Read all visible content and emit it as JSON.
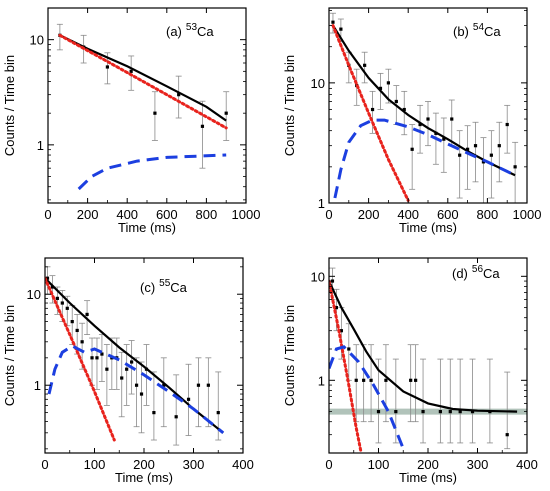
{
  "chart_data": [
    {
      "type": "scatter",
      "panel_label": "(a)",
      "mass_number": "53",
      "element": "Ca",
      "xlabel": "Time (ms)",
      "ylabel": "Counts / Time bin",
      "x_ticks": [
        "0",
        "200",
        "400",
        "600",
        "800",
        "1000"
      ],
      "y_ticks": [
        "1",
        "10"
      ],
      "xlim": [
        0,
        1000
      ],
      "ylim": [
        0.28,
        20
      ],
      "yscale": "log",
      "points": [
        {
          "x": 60,
          "y": 11,
          "lo": 8,
          "hi": 14
        },
        {
          "x": 180,
          "y": 8.5,
          "lo": 6,
          "hi": 11
        },
        {
          "x": 300,
          "y": 5.5,
          "lo": 3.8,
          "hi": 7.5
        },
        {
          "x": 420,
          "y": 5,
          "lo": 3.3,
          "hi": 7
        },
        {
          "x": 540,
          "y": 2,
          "lo": 1.1,
          "hi": 3.2
        },
        {
          "x": 660,
          "y": 3,
          "lo": 1.8,
          "hi": 4.5
        },
        {
          "x": 780,
          "y": 1.5,
          "lo": 0.6,
          "hi": 2.6
        },
        {
          "x": 900,
          "y": 2,
          "lo": 1.1,
          "hi": 3.2
        }
      ],
      "curves": [
        {
          "style": "black-solid",
          "points": [
            [
              60,
              11
            ],
            [
              200,
              8.2
            ],
            [
              400,
              5.6
            ],
            [
              600,
              3.6
            ],
            [
              800,
              2.3
            ],
            [
              900,
              1.7
            ]
          ]
        },
        {
          "style": "red-dotted",
          "points": [
            [
              60,
              11
            ],
            [
              300,
              6.2
            ],
            [
              600,
              3
            ],
            [
              900,
              1.45
            ]
          ]
        },
        {
          "style": "blue-dashed",
          "points": [
            [
              155,
              0.38
            ],
            [
              220,
              0.5
            ],
            [
              300,
              0.6
            ],
            [
              450,
              0.7
            ],
            [
              600,
              0.76
            ],
            [
              900,
              0.8
            ]
          ]
        }
      ]
    },
    {
      "type": "scatter",
      "panel_label": "(b)",
      "mass_number": "54",
      "element": "Ca",
      "xlabel": "Time (ms)",
      "ylabel": "Counts / Time bin",
      "x_ticks": [
        "0",
        "200",
        "400",
        "600",
        "800",
        "1000"
      ],
      "y_ticks": [
        "1",
        "10"
      ],
      "xlim": [
        0,
        1000
      ],
      "ylim": [
        1,
        42
      ],
      "yscale": "log",
      "points": [
        {
          "x": 20,
          "y": 32,
          "lo": 26,
          "hi": 38
        },
        {
          "x": 60,
          "y": 28,
          "lo": 22,
          "hi": 34
        },
        {
          "x": 100,
          "y": 14,
          "lo": 10,
          "hi": 18
        },
        {
          "x": 140,
          "y": 9.5,
          "lo": 6.5,
          "hi": 13
        },
        {
          "x": 180,
          "y": 14,
          "lo": 10,
          "hi": 18
        },
        {
          "x": 220,
          "y": 6,
          "lo": 3.8,
          "hi": 8.5
        },
        {
          "x": 260,
          "y": 9,
          "lo": 6,
          "hi": 12
        },
        {
          "x": 300,
          "y": 10,
          "lo": 6.8,
          "hi": 13
        },
        {
          "x": 340,
          "y": 7,
          "lo": 4.5,
          "hi": 9.5
        },
        {
          "x": 380,
          "y": 6,
          "lo": 3.7,
          "hi": 8.5
        },
        {
          "x": 420,
          "y": 2.8,
          "lo": 1.3,
          "hi": 4.5
        },
        {
          "x": 460,
          "y": 4.5,
          "lo": 2.6,
          "hi": 6.5
        },
        {
          "x": 500,
          "y": 5,
          "lo": 3,
          "hi": 7
        },
        {
          "x": 540,
          "y": 3.8,
          "lo": 2.1,
          "hi": 5.6
        },
        {
          "x": 580,
          "y": 3.4,
          "lo": 1.8,
          "hi": 5.1
        },
        {
          "x": 620,
          "y": 5,
          "lo": 3,
          "hi": 7.2
        },
        {
          "x": 660,
          "y": 2.5,
          "lo": 1.1,
          "hi": 4
        },
        {
          "x": 700,
          "y": 2.8,
          "lo": 1.3,
          "hi": 4.4
        },
        {
          "x": 740,
          "y": 3,
          "lo": 1.5,
          "hi": 4.7
        },
        {
          "x": 780,
          "y": 2.2,
          "lo": 1,
          "hi": 3.5
        },
        {
          "x": 820,
          "y": 2.5,
          "lo": 1.1,
          "hi": 4
        },
        {
          "x": 860,
          "y": 3,
          "lo": 1.5,
          "hi": 4.7
        },
        {
          "x": 900,
          "y": 4.5,
          "lo": 2.6,
          "hi": 6.5
        },
        {
          "x": 940,
          "y": 2,
          "lo": 1,
          "hi": 3.2
        }
      ],
      "curves": [
        {
          "style": "black-solid",
          "points": [
            [
              20,
              30
            ],
            [
              100,
              18.5
            ],
            [
              200,
              11
            ],
            [
              300,
              7.3
            ],
            [
              400,
              5.4
            ],
            [
              500,
              4.2
            ],
            [
              600,
              3.4
            ],
            [
              700,
              2.7
            ],
            [
              800,
              2.2
            ],
            [
              940,
              1.7
            ]
          ]
        },
        {
          "style": "red-dotted",
          "points": [
            [
              20,
              30
            ],
            [
              100,
              14
            ],
            [
              200,
              5.6
            ],
            [
              300,
              2.3
            ],
            [
              400,
              1.05
            ]
          ]
        },
        {
          "style": "blue-dashed",
          "points": [
            [
              30,
              1.1
            ],
            [
              60,
              1.9
            ],
            [
              100,
              3.2
            ],
            [
              160,
              4.4
            ],
            [
              220,
              4.9
            ],
            [
              280,
              4.9
            ],
            [
              400,
              4.3
            ],
            [
              500,
              3.7
            ],
            [
              600,
              3.1
            ],
            [
              700,
              2.6
            ],
            [
              800,
              2.2
            ],
            [
              940,
              1.7
            ]
          ]
        }
      ]
    },
    {
      "type": "scatter",
      "panel_label": "(c)",
      "mass_number": "55",
      "element": "Ca",
      "xlabel": "Time (ms)",
      "ylabel": "Counts / Time bin",
      "x_ticks": [
        "0",
        "100",
        "200",
        "300",
        "400"
      ],
      "y_ticks": [
        "1",
        "10"
      ],
      "xlim": [
        0,
        400
      ],
      "ylim": [
        0.18,
        25
      ],
      "yscale": "log",
      "points": [
        {
          "x": 5,
          "y": 15,
          "lo": 10,
          "hi": 20
        },
        {
          "x": 15,
          "y": 12,
          "lo": 8,
          "hi": 16
        },
        {
          "x": 25,
          "y": 9,
          "lo": 6,
          "hi": 12
        },
        {
          "x": 35,
          "y": 8,
          "lo": 5,
          "hi": 11
        },
        {
          "x": 45,
          "y": 7,
          "lo": 4.5,
          "hi": 9.5
        },
        {
          "x": 55,
          "y": 5,
          "lo": 2.8,
          "hi": 7.5
        },
        {
          "x": 65,
          "y": 4,
          "lo": 2.2,
          "hi": 6
        },
        {
          "x": 75,
          "y": 3,
          "lo": 1.5,
          "hi": 4.8
        },
        {
          "x": 85,
          "y": 6,
          "lo": 3.6,
          "hi": 8.5
        },
        {
          "x": 95,
          "y": 2,
          "lo": 1,
          "hi": 3.3
        },
        {
          "x": 105,
          "y": 2,
          "lo": 0.9,
          "hi": 3.3
        },
        {
          "x": 115,
          "y": 2.2,
          "lo": 1.1,
          "hi": 3.6
        },
        {
          "x": 125,
          "y": 1.5,
          "lo": 0.6,
          "hi": 2.8
        },
        {
          "x": 135,
          "y": 2,
          "lo": 0.9,
          "hi": 3.3
        },
        {
          "x": 145,
          "y": 2,
          "lo": 0.9,
          "hi": 3.3
        },
        {
          "x": 155,
          "y": 1.2,
          "lo": 0.45,
          "hi": 2.3
        },
        {
          "x": 165,
          "y": 1.5,
          "lo": 0.6,
          "hi": 2.8
        },
        {
          "x": 175,
          "y": 1.8,
          "lo": 0.8,
          "hi": 3.1
        },
        {
          "x": 185,
          "y": 1,
          "lo": 0.35,
          "hi": 2
        },
        {
          "x": 195,
          "y": 0.8,
          "lo": 0.3,
          "hi": 1.8
        },
        {
          "x": 205,
          "y": 1.5,
          "lo": 0.6,
          "hi": 2.8
        },
        {
          "x": 220,
          "y": 0.5,
          "lo": 0.25,
          "hi": 1.4
        },
        {
          "x": 240,
          "y": 1,
          "lo": 0.35,
          "hi": 2
        },
        {
          "x": 265,
          "y": 0.45,
          "lo": 0.22,
          "hi": 1.3
        },
        {
          "x": 290,
          "y": 0.7,
          "lo": 0.28,
          "hi": 1.7
        },
        {
          "x": 310,
          "y": 1,
          "lo": 0.35,
          "hi": 2
        },
        {
          "x": 330,
          "y": 1,
          "lo": 0.35,
          "hi": 2
        },
        {
          "x": 350,
          "y": 0.5,
          "lo": 0.25,
          "hi": 1.4
        }
      ],
      "curves": [
        {
          "style": "black-solid",
          "points": [
            [
              0,
              15
            ],
            [
              50,
              8
            ],
            [
              100,
              4.5
            ],
            [
              150,
              2.6
            ],
            [
              200,
              1.6
            ],
            [
              250,
              0.95
            ],
            [
              300,
              0.55
            ],
            [
              360,
              0.3
            ]
          ]
        },
        {
          "style": "red-dotted",
          "points": [
            [
              0,
              15
            ],
            [
              50,
              3.6
            ],
            [
              100,
              0.85
            ],
            [
              140,
              0.25
            ]
          ]
        },
        {
          "style": "blue-dashed",
          "points": [
            [
              8,
              0.8
            ],
            [
              20,
              1.5
            ],
            [
              35,
              2.3
            ],
            [
              55,
              2.7
            ],
            [
              80,
              2.3
            ],
            [
              100,
              2.5
            ],
            [
              150,
              1.9
            ],
            [
              200,
              1.3
            ],
            [
              250,
              0.85
            ],
            [
              300,
              0.55
            ],
            [
              360,
              0.3
            ]
          ]
        }
      ]
    },
    {
      "type": "scatter",
      "panel_label": "(d)",
      "mass_number": "56",
      "element": "Ca",
      "xlabel": "Time (ms)",
      "ylabel": "Counts / Time bin",
      "x_ticks": [
        "0",
        "100",
        "200",
        "300",
        "400"
      ],
      "y_ticks": [
        "1",
        "10"
      ],
      "xlim": [
        0,
        400
      ],
      "ylim": [
        0.2,
        15
      ],
      "yscale": "log",
      "points": [
        {
          "x": 7,
          "y": 9,
          "lo": 6,
          "hi": 12
        },
        {
          "x": 15,
          "y": 5,
          "lo": 3,
          "hi": 7.5
        },
        {
          "x": 25,
          "y": 3,
          "lo": 1.6,
          "hi": 5
        },
        {
          "x": 40,
          "y": 2,
          "lo": 1,
          "hi": 3.5
        },
        {
          "x": 55,
          "y": 1,
          "lo": 0.4,
          "hi": 2.2
        },
        {
          "x": 70,
          "y": 1,
          "lo": 0.4,
          "hi": 2.2
        },
        {
          "x": 85,
          "y": 1,
          "lo": 0.4,
          "hi": 2.2
        },
        {
          "x": 100,
          "y": 0.5,
          "lo": 0.25,
          "hi": 1.6
        },
        {
          "x": 115,
          "y": 1,
          "lo": 0.4,
          "hi": 2.2
        },
        {
          "x": 135,
          "y": 0.5,
          "lo": 0.25,
          "hi": 1.6
        },
        {
          "x": 165,
          "y": 1,
          "lo": 0.4,
          "hi": 2.2
        },
        {
          "x": 175,
          "y": 1,
          "lo": 0.4,
          "hi": 2.2
        },
        {
          "x": 190,
          "y": 0.5,
          "lo": 0.25,
          "hi": 1.6
        },
        {
          "x": 225,
          "y": 0.5,
          "lo": 0.25,
          "hi": 1.6
        },
        {
          "x": 245,
          "y": 0.5,
          "lo": 0.25,
          "hi": 1.6
        },
        {
          "x": 265,
          "y": 0.5,
          "lo": 0.25,
          "hi": 1.6
        },
        {
          "x": 290,
          "y": 0.5,
          "lo": 0.25,
          "hi": 1.6
        },
        {
          "x": 325,
          "y": 0.5,
          "lo": 0.25,
          "hi": 1.6
        },
        {
          "x": 360,
          "y": 0.3,
          "lo": 0.22,
          "hi": 1.2
        }
      ],
      "background_level": 0.5,
      "curves": [
        {
          "style": "black-solid",
          "points": [
            [
              0,
              9
            ],
            [
              25,
              5
            ],
            [
              50,
              3.1
            ],
            [
              75,
              1.9
            ],
            [
              100,
              1.25
            ],
            [
              150,
              0.78
            ],
            [
              200,
              0.6
            ],
            [
              250,
              0.53
            ],
            [
              300,
              0.51
            ],
            [
              380,
              0.5
            ]
          ]
        },
        {
          "style": "red-dotted",
          "points": [
            [
              0,
              9
            ],
            [
              20,
              3
            ],
            [
              40,
              0.9
            ],
            [
              55,
              0.35
            ],
            [
              65,
              0.2
            ]
          ]
        },
        {
          "style": "blue-dashed",
          "points": [
            [
              0,
              1.3
            ],
            [
              15,
              2
            ],
            [
              30,
              2.1
            ],
            [
              60,
              1.5
            ],
            [
              90,
              0.9
            ],
            [
              120,
              0.5
            ],
            [
              150,
              0.22
            ]
          ]
        }
      ]
    }
  ],
  "colors": {
    "fit_total": "#000000",
    "fit_parent": "#e8231d",
    "fit_daughter": "#1c3fe0",
    "background": "#a9bdb3",
    "errorbar": "#8a8a8a"
  }
}
